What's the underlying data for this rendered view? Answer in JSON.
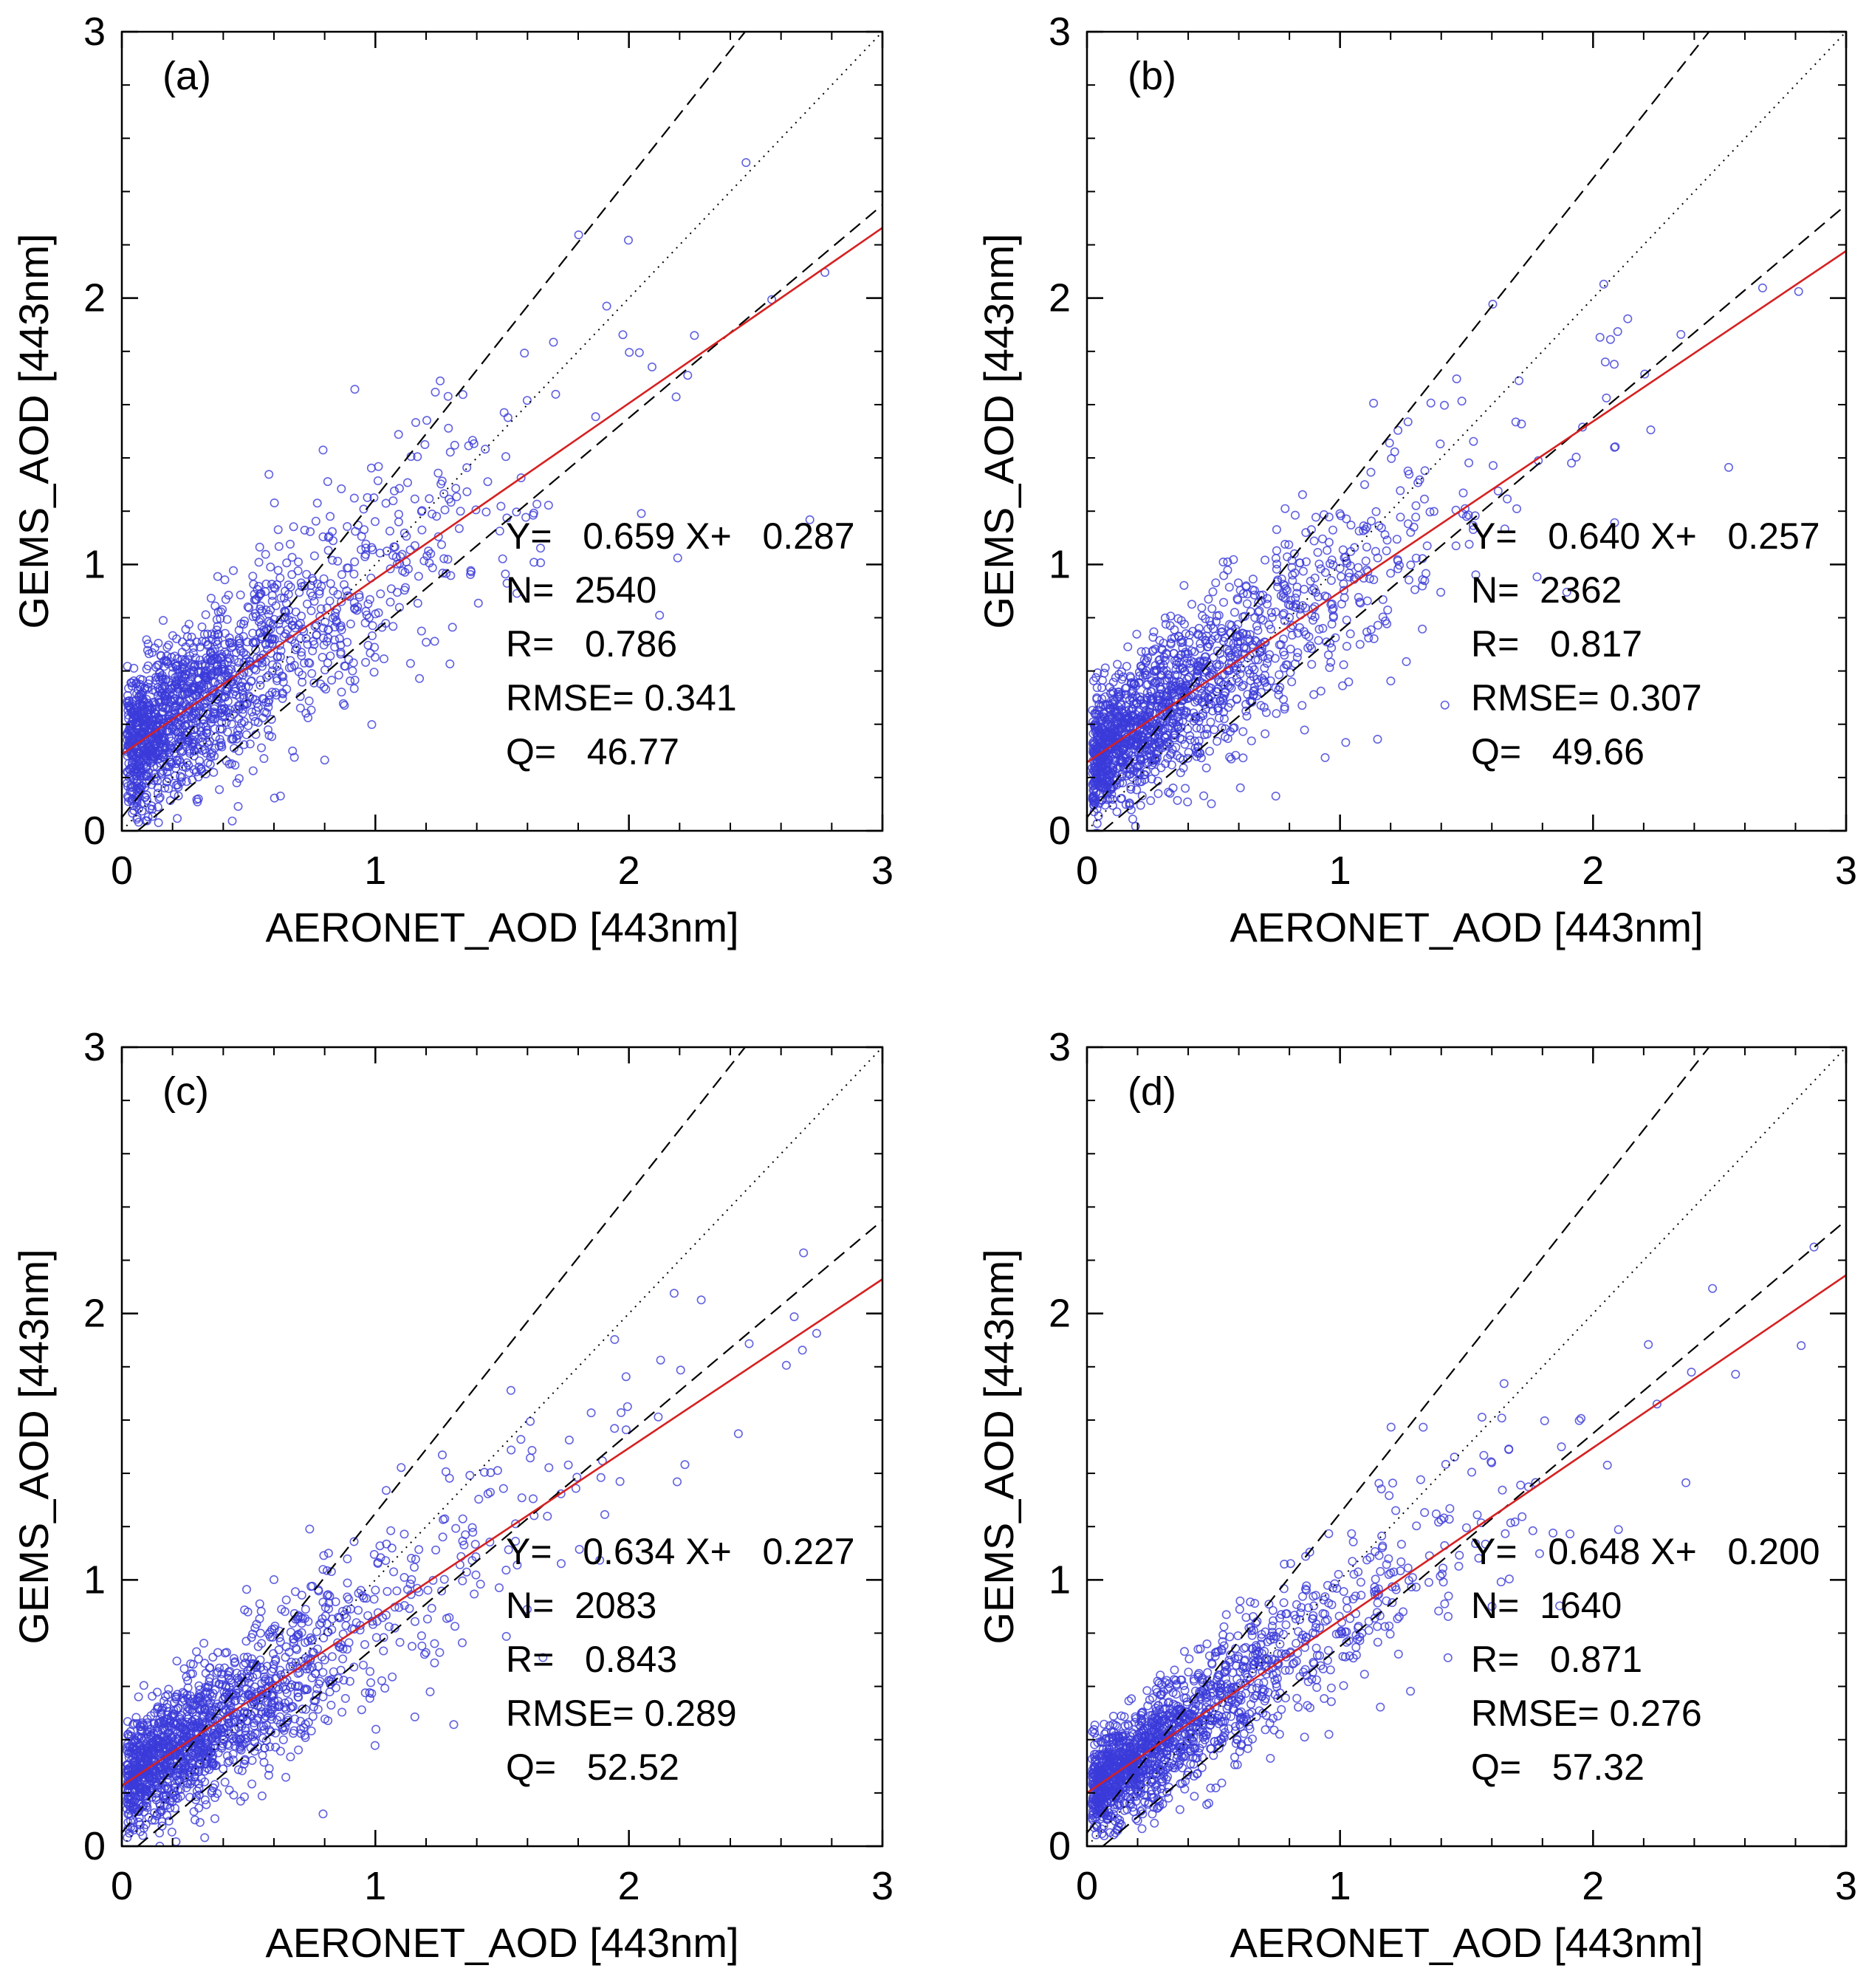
{
  "figure": {
    "description_free": true,
    "panel_count": 4
  },
  "colors": {
    "points": "#3b3bd9",
    "fit_line": "#d62020",
    "reference_lines": "#000000",
    "axes": "#000000"
  },
  "chart_data": [
    {
      "type": "scatter",
      "panel_label": "(a)",
      "xlabel": "AERONET_AOD [443nm]",
      "ylabel": "GEMS_AOD [443nm]",
      "xlim": [
        0,
        3
      ],
      "ylim": [
        0,
        3
      ],
      "x_ticks": [
        "0",
        "1",
        "2",
        "3"
      ],
      "y_ticks": [
        "0",
        "1",
        "2",
        "3"
      ],
      "slope": 0.659,
      "intercept": 0.287,
      "n": 2540,
      "r": 0.786,
      "rmse": 0.341,
      "q": 46.77,
      "stats": {
        "eq": "Y=   0.659 X+   0.287",
        "n": "N=  2540",
        "r": "R=   0.786",
        "rmse": "RMSE= 0.341",
        "q": "Q=   46.77"
      },
      "reference_lines": {
        "one_to_one": true,
        "ee_upper": "1.2x+0.05",
        "ee_lower": "0.8x-0.05"
      },
      "spread": 0.23,
      "seed": 11
    },
    {
      "type": "scatter",
      "panel_label": "(b)",
      "xlabel": "AERONET_AOD [443nm]",
      "ylabel": "GEMS_AOD [443nm]",
      "xlim": [
        0,
        3
      ],
      "ylim": [
        0,
        3
      ],
      "x_ticks": [
        "0",
        "1",
        "2",
        "3"
      ],
      "y_ticks": [
        "0",
        "1",
        "2",
        "3"
      ],
      "slope": 0.64,
      "intercept": 0.257,
      "n": 2362,
      "r": 0.817,
      "rmse": 0.307,
      "q": 49.66,
      "stats": {
        "eq": "Y=   0.640 X+   0.257",
        "n": "N=  2362",
        "r": "R=   0.817",
        "rmse": "RMSE= 0.307",
        "q": "Q=   49.66"
      },
      "reference_lines": {
        "one_to_one": true,
        "ee_upper": "1.2x+0.05",
        "ee_lower": "0.8x-0.05"
      },
      "spread": 0.2,
      "seed": 23
    },
    {
      "type": "scatter",
      "panel_label": "(c)",
      "xlabel": "AERONET_AOD [443nm]",
      "ylabel": "GEMS_AOD [443nm]",
      "xlim": [
        0,
        3
      ],
      "ylim": [
        0,
        3
      ],
      "x_ticks": [
        "0",
        "1",
        "2",
        "3"
      ],
      "y_ticks": [
        "0",
        "1",
        "2",
        "3"
      ],
      "slope": 0.634,
      "intercept": 0.227,
      "n": 2083,
      "r": 0.843,
      "rmse": 0.289,
      "q": 52.52,
      "stats": {
        "eq": "Y=   0.634 X+   0.227",
        "n": "N=  2083",
        "r": "R=   0.843",
        "rmse": "RMSE= 0.289",
        "q": "Q=   52.52"
      },
      "reference_lines": {
        "one_to_one": true,
        "ee_upper": "1.2x+0.05",
        "ee_lower": "0.8x-0.05"
      },
      "spread": 0.18,
      "seed": 37
    },
    {
      "type": "scatter",
      "panel_label": "(d)",
      "xlabel": "AERONET_AOD [443nm]",
      "ylabel": "GEMS_AOD [443nm]",
      "xlim": [
        0,
        3
      ],
      "ylim": [
        0,
        3
      ],
      "x_ticks": [
        "0",
        "1",
        "2",
        "3"
      ],
      "y_ticks": [
        "0",
        "1",
        "2",
        "3"
      ],
      "slope": 0.648,
      "intercept": 0.2,
      "n": 1640,
      "r": 0.871,
      "rmse": 0.276,
      "q": 57.32,
      "stats": {
        "eq": "Y=   0.648 X+   0.200",
        "n": "N=  1640",
        "r": "R=   0.871",
        "rmse": "RMSE= 0.276",
        "q": "Q=   57.32"
      },
      "reference_lines": {
        "one_to_one": true,
        "ee_upper": "1.2x+0.05",
        "ee_lower": "0.8x-0.05"
      },
      "spread": 0.16,
      "seed": 53
    }
  ]
}
